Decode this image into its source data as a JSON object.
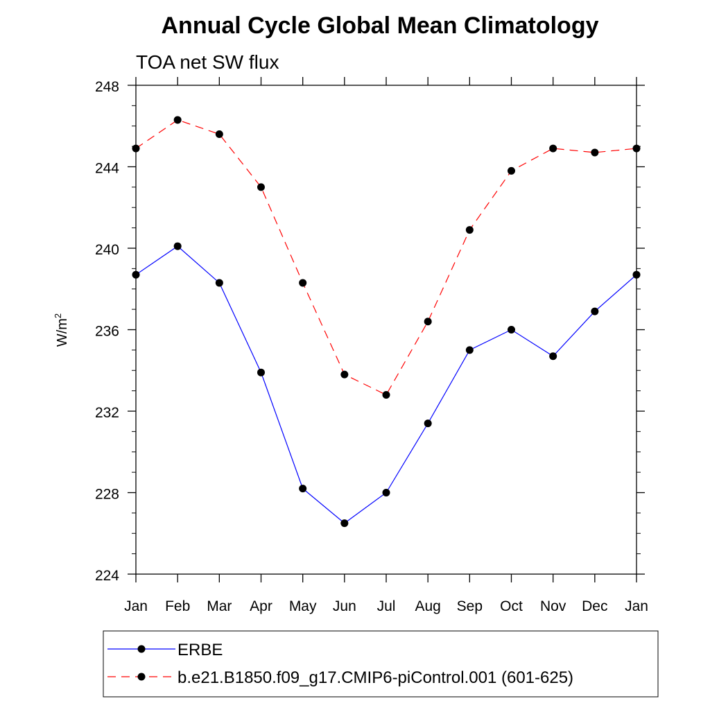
{
  "chart_data": {
    "type": "line",
    "title": "Annual Cycle Global Mean Climatology",
    "subtitle": "TOA net SW flux",
    "ylabel_base": "W/m",
    "ylabel_sup": "2",
    "ylim": [
      224,
      248
    ],
    "yticks": [
      224,
      228,
      232,
      236,
      240,
      244,
      248
    ],
    "categories": [
      "Jan",
      "Feb",
      "Mar",
      "Apr",
      "May",
      "Jun",
      "Jul",
      "Aug",
      "Sep",
      "Oct",
      "Nov",
      "Dec",
      "Jan"
    ],
    "series": [
      {
        "name": "ERBE",
        "color": "#0000ff",
        "dash": "solid",
        "values": [
          238.7,
          240.1,
          238.3,
          233.9,
          228.2,
          226.5,
          228.0,
          231.4,
          235.0,
          236.0,
          234.7,
          236.9,
          238.7
        ]
      },
      {
        "name": "b.e21.B1850.f09_g17.CMIP6-piControl.001 (601-625)",
        "color": "#ff0000",
        "dash": "dashed",
        "values": [
          244.9,
          246.3,
          245.6,
          243.0,
          238.3,
          233.8,
          232.8,
          236.4,
          240.9,
          243.8,
          244.9,
          244.7,
          244.9
        ]
      }
    ],
    "grid": false,
    "legend_position": "bottom"
  }
}
